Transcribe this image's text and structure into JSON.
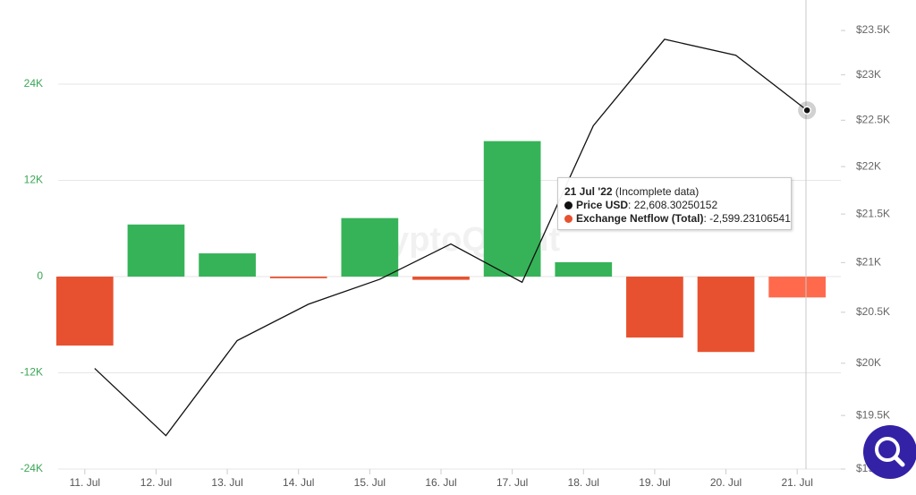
{
  "chart_data": {
    "type": "bar",
    "watermark": "CryptoQuant",
    "categories": [
      "11. Jul",
      "12. Jul",
      "13. Jul",
      "14. Jul",
      "15. Jul",
      "16. Jul",
      "17. Jul",
      "18. Jul",
      "19. Jul",
      "20. Jul",
      "21. Jul"
    ],
    "series": [
      {
        "name": "Exchange Netflow (Total)",
        "type": "bar",
        "color": "#e8512f",
        "bar_colors": [
          "#e8512f",
          "#36b358",
          "#36b358",
          "#e8512f",
          "#36b358",
          "#e8512f",
          "#36b358",
          "#36b358",
          "#e8512f",
          "#e8512f",
          "#ff6a4d"
        ],
        "values": [
          -8600,
          6500,
          2900,
          -200,
          7300,
          -400,
          16900,
          1800,
          -7600,
          -9400,
          -2599.23106541
        ],
        "value_labels": [
          null,
          null,
          null,
          null,
          null,
          null,
          null,
          null,
          null,
          null,
          "-2,599.23106541"
        ]
      },
      {
        "name": "Price USD",
        "type": "line",
        "axis": "y2",
        "color": "#111111",
        "values": [
          19950,
          19310,
          20220,
          20580,
          20830,
          21190,
          20800,
          22440,
          23400,
          23220,
          22608.30250152
        ],
        "value_labels": [
          null,
          null,
          null,
          null,
          null,
          null,
          null,
          null,
          null,
          null,
          "22,608.30250152"
        ]
      }
    ],
    "ylim": [
      -24000,
      34500
    ],
    "yticks": [
      {
        "value": -24000,
        "label": "-24K"
      },
      {
        "value": -12000,
        "label": "-12K"
      },
      0,
      {
        "value": 12000,
        "label": "12K"
      },
      {
        "value": 24000,
        "label": "24K"
      }
    ],
    "y2lim": [
      19000,
      23850
    ],
    "y2_log": true,
    "y2ticks": [
      {
        "value": 19000,
        "label": "$19K"
      },
      {
        "value": 19500,
        "label": "$19.5K"
      },
      {
        "value": 20000,
        "label": "$20K"
      },
      {
        "value": 20500,
        "label": "$20.5K"
      },
      {
        "value": 21000,
        "label": "$21K"
      },
      {
        "value": 21500,
        "label": "$21.5K"
      },
      {
        "value": 22000,
        "label": "$22K"
      },
      {
        "value": 22500,
        "label": "$22.5K"
      },
      {
        "value": 23000,
        "label": "$23K"
      },
      {
        "value": 23500,
        "label": "$23.5K"
      }
    ],
    "grid": true,
    "tooltip": {
      "index": 10,
      "title": "21 Jul '22",
      "subtitle": "(Incomplete data)"
    }
  }
}
